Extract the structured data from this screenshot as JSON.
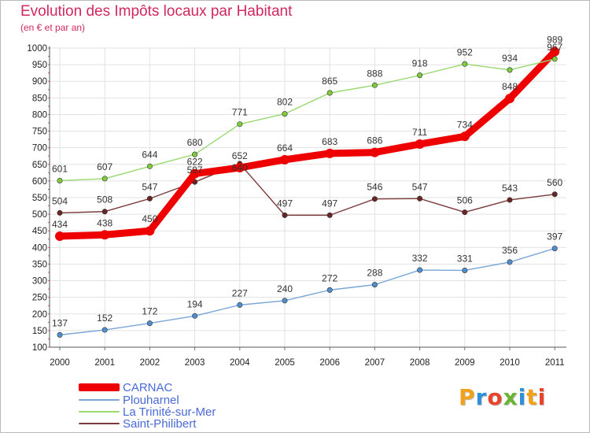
{
  "chart_data": {
    "type": "line",
    "title": "Evolution des Impôts locaux par Habitant",
    "subtitle": "(en € et par an)",
    "xlabel": "",
    "ylabel": "",
    "ylim": [
      100,
      1000
    ],
    "yticks": [
      100,
      150,
      200,
      250,
      300,
      350,
      400,
      450,
      500,
      550,
      600,
      650,
      700,
      750,
      800,
      850,
      900,
      950,
      1000
    ],
    "categories": [
      "2000",
      "2001",
      "2002",
      "2003",
      "2004",
      "2005",
      "2006",
      "2007",
      "2008",
      "2009",
      "2010",
      "2011"
    ],
    "grid": true,
    "legend_position": "bottom-left",
    "series": [
      {
        "name": "CARNAC",
        "color": "#ee0000",
        "values": [
          434,
          438,
          450,
          622,
          640,
          664,
          683,
          686,
          711,
          734,
          848,
          989
        ]
      },
      {
        "name": "Plouharnel",
        "color": "#7aa6d6",
        "marker_color": "#4f8fcf",
        "values": [
          137,
          152,
          172,
          194,
          227,
          240,
          272,
          288,
          332,
          331,
          356,
          397
        ]
      },
      {
        "name": "La Trinité-sur-Mer",
        "color": "#9ad870",
        "marker_color": "#7fcc3f",
        "values": [
          601,
          607,
          644,
          680,
          771,
          802,
          865,
          888,
          918,
          952,
          934,
          967
        ]
      },
      {
        "name": "Saint-Philibert",
        "color": "#7b3a3a",
        "marker_color": "#6a2525",
        "values": [
          504,
          508,
          547,
          597,
          652,
          497,
          497,
          546,
          547,
          506,
          543,
          560
        ]
      }
    ]
  },
  "logo": {
    "text": "Proxiti",
    "letters": [
      "P",
      "r",
      "o",
      "x",
      "i",
      "t",
      "i"
    ],
    "colors": [
      "#f2a21a",
      "#2f8fd8",
      "#e9432b",
      "#69b531",
      "#2f8fd8",
      "#f2a21a",
      "#e9432b"
    ]
  }
}
